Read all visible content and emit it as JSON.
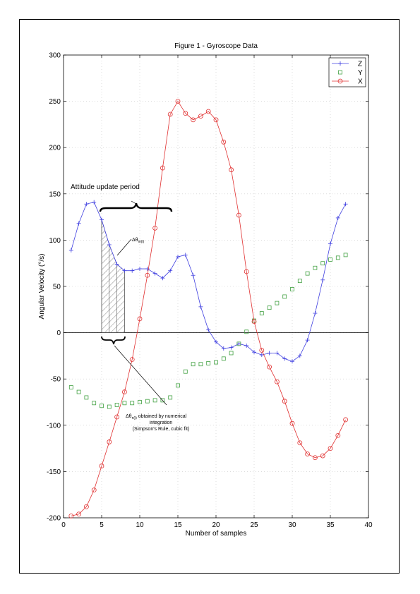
{
  "chart_data": {
    "type": "line",
    "title": "Figure 1 - Gyroscope Data",
    "xlabel": "Number of samples",
    "ylabel": "Angular Velocity (°/s)",
    "xlim": [
      0,
      40
    ],
    "ylim": [
      -200,
      300
    ],
    "xticks": [
      0,
      5,
      10,
      15,
      20,
      25,
      30,
      35,
      40
    ],
    "yticks": [
      -200,
      -150,
      -100,
      -50,
      0,
      50,
      100,
      150,
      200,
      250,
      300
    ],
    "xtick_labels": [
      "0",
      "5",
      "10",
      "15",
      "20",
      "25",
      "30",
      "35",
      "40"
    ],
    "ytick_labels": [
      "-200",
      "-150",
      "-100",
      "-50",
      "0",
      "50",
      "100",
      "150",
      "200",
      "250",
      "300"
    ],
    "grid": true,
    "legend_position": "top-right",
    "series": [
      {
        "name": "Z",
        "color": "#4040e0",
        "marker": "plus",
        "line": true,
        "x": [
          1,
          2,
          3,
          4,
          5,
          6,
          7,
          8,
          9,
          10,
          11,
          12,
          13,
          14,
          15,
          16,
          17,
          18,
          19,
          20,
          21,
          22,
          23,
          24,
          25,
          26,
          27,
          28,
          29,
          30,
          31,
          32,
          33,
          34,
          35,
          36,
          37
        ],
        "y": [
          89,
          118,
          139,
          141,
          122,
          95,
          74,
          67,
          67,
          69,
          69,
          64,
          59,
          67,
          82,
          84,
          62,
          28,
          3,
          -10,
          -17,
          -16,
          -12,
          -14,
          -21,
          -24,
          -22,
          -22,
          -28,
          -31,
          -25,
          -8,
          21,
          57,
          96,
          124,
          139
        ]
      },
      {
        "name": "Y",
        "color": "#40a040",
        "marker": "square",
        "line": false,
        "x": [
          1,
          2,
          3,
          4,
          5,
          6,
          7,
          8,
          9,
          10,
          11,
          12,
          13,
          14,
          15,
          16,
          17,
          18,
          19,
          20,
          21,
          22,
          23,
          24,
          25,
          26,
          27,
          28,
          29,
          30,
          31,
          32,
          33,
          34,
          35,
          36,
          37
        ],
        "y": [
          -59,
          -64,
          -70,
          -76,
          -79,
          -80,
          -78,
          -76,
          -76,
          -75,
          -74,
          -73,
          -73,
          -70,
          -57,
          -42,
          -34,
          -34,
          -33,
          -32,
          -28,
          -22,
          -12,
          1,
          13,
          21,
          27,
          32,
          39,
          47,
          56,
          64,
          70,
          75,
          79,
          81,
          84
        ]
      },
      {
        "name": "X",
        "color": "#e03030",
        "marker": "circle",
        "line": true,
        "x": [
          1,
          2,
          3,
          4,
          5,
          6,
          7,
          8,
          9,
          10,
          11,
          12,
          13,
          14,
          15,
          16,
          17,
          18,
          19,
          20,
          21,
          22,
          23,
          24,
          25,
          26,
          27,
          28,
          29,
          30,
          31,
          32,
          33,
          34,
          35,
          36,
          37
        ],
        "y": [
          -198,
          -196,
          -188,
          -170,
          -144,
          -118,
          -91,
          -64,
          -29,
          15,
          62,
          113,
          178,
          236,
          250,
          237,
          230,
          234,
          239,
          230,
          206,
          176,
          127,
          66,
          12,
          -19,
          -37,
          -53,
          -74,
          -98,
          -119,
          -131,
          -135,
          -133,
          -125,
          -111,
          -94
        ]
      }
    ],
    "annotations": {
      "attitude": "Attitude update period",
      "delta_m_prefix": "Δθ",
      "delta_m_sub": "m(i)",
      "delta_n_prefix": "Δθ",
      "delta_n_sub": "n(i)",
      "delta_n_rest": " obtained by numerical",
      "delta_n_line2": "integration",
      "delta_n_line3": "(Simpson's Rule, cubic fit)"
    }
  }
}
